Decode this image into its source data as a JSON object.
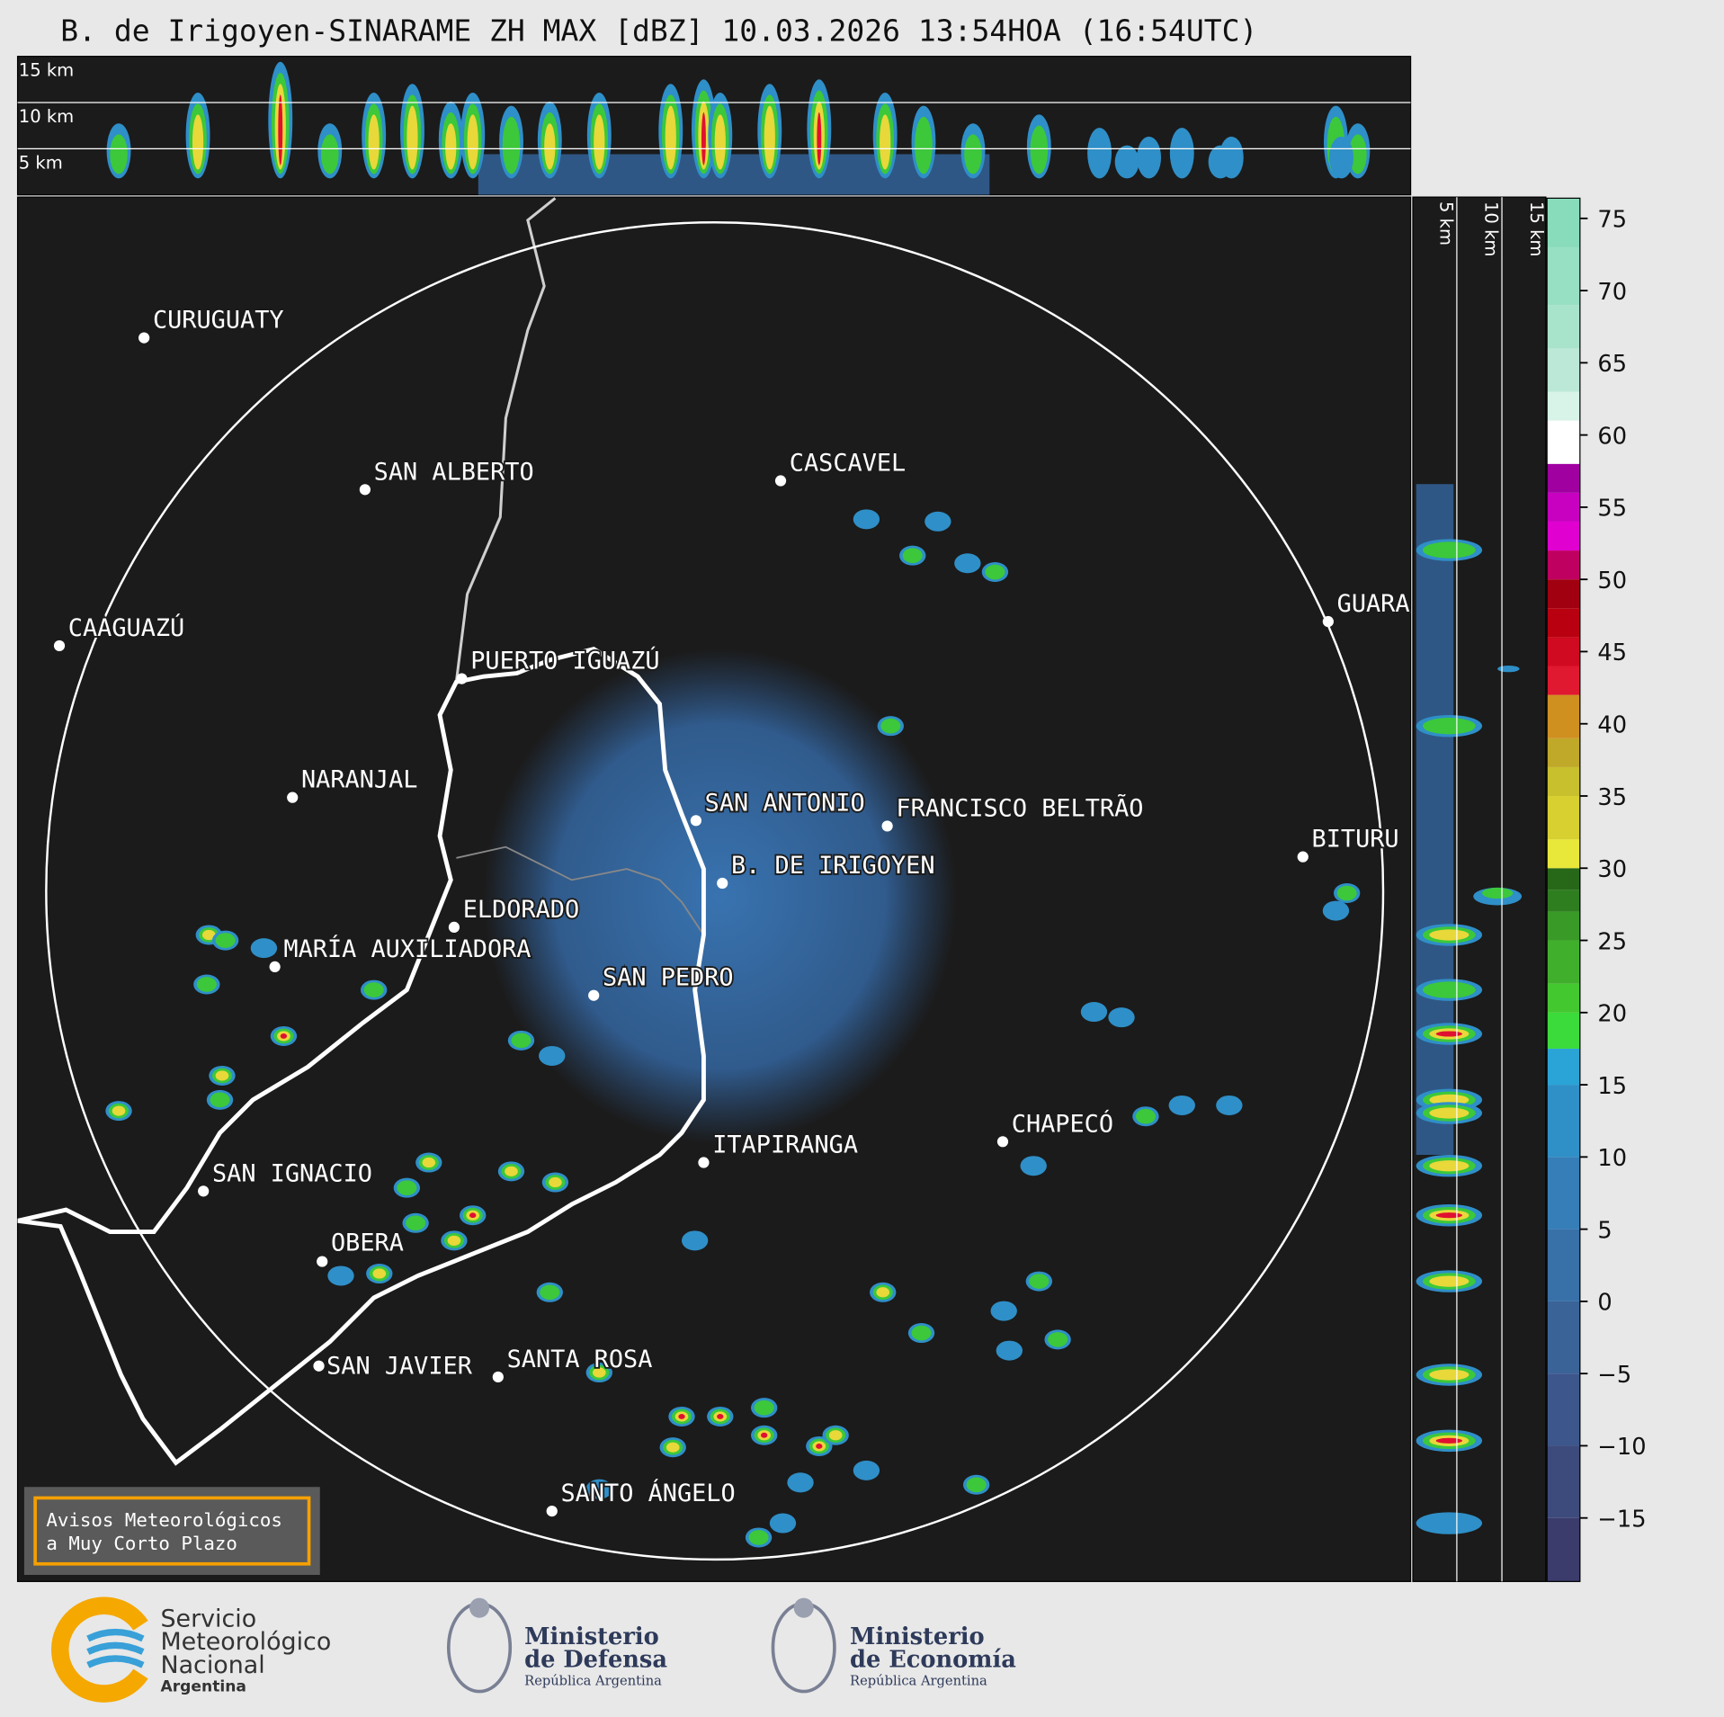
{
  "title": "B. de Irigoyen-SINARAME ZH MAX [dBZ] 10.03.2026 13:54HOA (16:54UTC)",
  "height_panel": {
    "labels": [
      "15 km",
      "10 km",
      "5 km"
    ]
  },
  "side_panel": {
    "labels": [
      "5 km",
      "10 km",
      "15 km"
    ]
  },
  "cities": [
    {
      "name": "CURUGUATY"
    },
    {
      "name": "SAN ALBERTO"
    },
    {
      "name": "CASCAVEL"
    },
    {
      "name": "CAAGUAZÚ"
    },
    {
      "name": "GUARA"
    },
    {
      "name": "PUERTO IGUAZÚ"
    },
    {
      "name": "NARANJAL"
    },
    {
      "name": "SAN ANTONIO"
    },
    {
      "name": "FRANCISCO BELTRÃO"
    },
    {
      "name": "BITURU"
    },
    {
      "name": "B. DE IRIGOYEN"
    },
    {
      "name": "ELDORADO"
    },
    {
      "name": "MARÍA AUXILIADORA"
    },
    {
      "name": "SAN PEDRO"
    },
    {
      "name": "CHAPECÓ"
    },
    {
      "name": "ITAPIRANGA"
    },
    {
      "name": "SAN IGNACIO"
    },
    {
      "name": "OBERA"
    },
    {
      "name": "SAN JAVIER"
    },
    {
      "name": "SANTA ROSA"
    },
    {
      "name": "SANTO ÁNGELO"
    }
  ],
  "colorbar": {
    "clim": [
      -19.4,
      76.4
    ],
    "ticks": [
      75,
      70,
      65,
      60,
      55,
      50,
      45,
      40,
      35,
      30,
      25,
      20,
      15,
      10,
      5,
      0,
      {
        "value": -5,
        "label": "−5"
      },
      {
        "value": -10,
        "label": "−10"
      },
      {
        "value": -15,
        "label": "−15"
      }
    ]
  },
  "warning_box": {
    "lines": [
      "Avisos Meteorológicos",
      "a Muy Corto Plazo"
    ]
  },
  "logos": {
    "smn": {
      "lines": [
        "Servicio",
        "Meteorológico",
        "Nacional",
        "Argentina"
      ]
    },
    "defensa": {
      "lines": [
        "Ministerio",
        "de Defensa",
        "República Argentina"
      ]
    },
    "economia": {
      "lines": [
        "Ministerio",
        "de Economía",
        "República Argentina"
      ]
    }
  }
}
